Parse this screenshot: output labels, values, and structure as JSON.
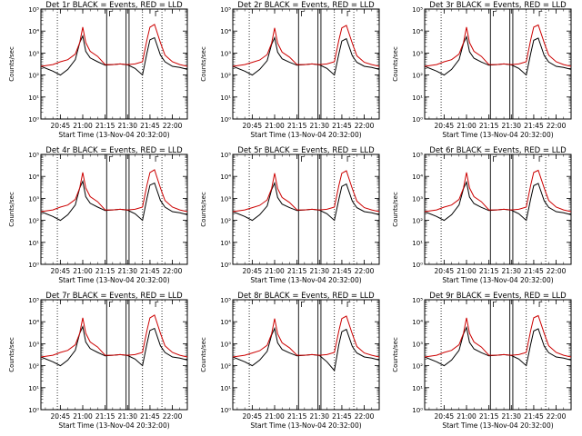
{
  "chart_data": {
    "type": "line",
    "layout": "3x3 grid of panels",
    "yscale": "log",
    "ylim": [
      1,
      100000
    ],
    "ytick_labels": [
      "10⁰",
      "10¹",
      "10²",
      "10³",
      "10⁴",
      "10⁵"
    ],
    "ylabel": "Counts/sec",
    "xlabel": "Start Time (13-Nov-04 20:32:00)",
    "xlim": [
      "20:32",
      "22:10"
    ],
    "xtick_labels": [
      "20:45",
      "21:00",
      "21:15",
      "21:30",
      "21:45",
      "22:00"
    ],
    "series_colors": {
      "Events": "#000000",
      "LLD": "#cc0000"
    },
    "marker_labels": [
      "Γ",
      "Γ"
    ],
    "vlines_solid": [
      "21:16",
      "21:29",
      "21:31"
    ],
    "vlines_dotted": [
      "20:43",
      "21:40",
      "21:53"
    ],
    "time_axis_hhmm": [
      "20:32",
      "20:40",
      "20:45",
      "20:50",
      "20:55",
      "20:58",
      "21:00",
      "21:02",
      "21:05",
      "21:10",
      "21:15",
      "21:20",
      "21:25",
      "21:30",
      "21:35",
      "21:40",
      "21:43",
      "21:45",
      "21:48",
      "21:52",
      "21:55",
      "22:00",
      "22:05",
      "22:10"
    ],
    "panels": [
      {
        "title": "Det 1r BLACK = Events, RED = LLD",
        "series": [
          {
            "name": "Events",
            "values": [
              250,
              150,
              100,
              180,
              500,
              3000,
              6000,
              1200,
              600,
              400,
              280,
              300,
              320,
              290,
              200,
              100,
              1000,
              4000,
              5000,
              800,
              400,
              250,
              220,
              180
            ]
          },
          {
            "name": "LLD",
            "values": [
              250,
              300,
              400,
              500,
              900,
              3000,
              15000,
              3000,
              1200,
              700,
              300,
              300,
              320,
              300,
              320,
              400,
              4000,
              15000,
              20000,
              3000,
              800,
              400,
              300,
              250
            ]
          }
        ]
      },
      {
        "title": "Det 2r BLACK = Events, RED = LLD",
        "series": [
          {
            "name": "Events",
            "values": [
              250,
              150,
              100,
              180,
              450,
              2500,
              5000,
              1100,
              550,
              380,
              280,
              300,
              320,
              290,
              200,
              100,
              900,
              3500,
              4500,
              750,
              380,
              250,
              220,
              180
            ]
          },
          {
            "name": "LLD",
            "values": [
              250,
              300,
              380,
              480,
              850,
              2800,
              14000,
              2800,
              1100,
              650,
              300,
              300,
              320,
              300,
              320,
              400,
              3800,
              14000,
              18000,
              2800,
              750,
              380,
              300,
              250
            ]
          }
        ]
      },
      {
        "title": "Det 3r BLACK = Events, RED = LLD",
        "series": [
          {
            "name": "Events",
            "values": [
              250,
              150,
              100,
              180,
              500,
              2800,
              5500,
              1150,
              580,
              390,
              280,
              300,
              320,
              290,
              200,
              100,
              950,
              3800,
              4800,
              780,
              390,
              250,
              220,
              180
            ]
          },
          {
            "name": "LLD",
            "values": [
              250,
              300,
              400,
              500,
              900,
              3000,
              15000,
              3000,
              1200,
              700,
              300,
              300,
              320,
              300,
              320,
              400,
              4000,
              15000,
              19000,
              3000,
              800,
              400,
              300,
              250
            ]
          }
        ]
      },
      {
        "title": "Det 4r BLACK = Events, RED = LLD",
        "series": [
          {
            "name": "Events",
            "values": [
              250,
              150,
              100,
              180,
              500,
              3000,
              6000,
              1200,
              600,
              400,
              280,
              300,
              320,
              290,
              200,
              100,
              1000,
              4000,
              5000,
              800,
              400,
              250,
              220,
              180
            ]
          },
          {
            "name": "LLD",
            "values": [
              250,
              300,
              400,
              500,
              900,
              3000,
              15000,
              3000,
              1200,
              700,
              300,
              300,
              320,
              300,
              320,
              400,
              4000,
              15000,
              20000,
              3000,
              800,
              400,
              300,
              250
            ]
          }
        ]
      },
      {
        "title": "Det 5r BLACK = Events, RED = LLD",
        "series": [
          {
            "name": "Events",
            "values": [
              250,
              150,
              100,
              180,
              450,
              2500,
              5000,
              1100,
              550,
              380,
              280,
              300,
              320,
              290,
              200,
              100,
              900,
              3500,
              4500,
              750,
              380,
              250,
              220,
              180
            ]
          },
          {
            "name": "LLD",
            "values": [
              250,
              300,
              380,
              480,
              850,
              2800,
              14000,
              2800,
              1100,
              650,
              300,
              300,
              320,
              300,
              320,
              400,
              3800,
              14000,
              18000,
              2800,
              750,
              380,
              300,
              250
            ]
          }
        ]
      },
      {
        "title": "Det 6r BLACK = Events, RED = LLD",
        "series": [
          {
            "name": "Events",
            "values": [
              250,
              150,
              100,
              180,
              500,
              2800,
              5500,
              1150,
              580,
              390,
              280,
              300,
              320,
              290,
              200,
              100,
              950,
              3800,
              4800,
              780,
              390,
              250,
              220,
              180
            ]
          },
          {
            "name": "LLD",
            "values": [
              250,
              300,
              400,
              500,
              900,
              3000,
              15000,
              3000,
              1200,
              700,
              300,
              300,
              320,
              300,
              320,
              400,
              4000,
              15000,
              19000,
              3000,
              800,
              400,
              300,
              250
            ]
          }
        ]
      },
      {
        "title": "Det 7r BLACK = Events, RED = LLD",
        "series": [
          {
            "name": "Events",
            "values": [
              250,
              150,
              100,
              180,
              500,
              3000,
              6000,
              1200,
              600,
              400,
              280,
              300,
              320,
              290,
              200,
              100,
              1000,
              4000,
              5000,
              800,
              400,
              250,
              220,
              180
            ]
          },
          {
            "name": "LLD",
            "values": [
              250,
              300,
              400,
              500,
              900,
              3000,
              15000,
              3000,
              1200,
              700,
              300,
              300,
              320,
              300,
              320,
              400,
              4000,
              15000,
              20000,
              3000,
              800,
              400,
              300,
              250
            ]
          }
        ]
      },
      {
        "title": "Det 8r BLACK = Events, RED = LLD",
        "series": [
          {
            "name": "Events",
            "values": [
              250,
              150,
              100,
              180,
              450,
              2500,
              5000,
              1100,
              550,
              380,
              280,
              300,
              320,
              290,
              150,
              60,
              900,
              3500,
              4500,
              750,
              380,
              250,
              220,
              180
            ]
          },
          {
            "name": "LLD",
            "values": [
              250,
              300,
              380,
              480,
              850,
              2800,
              14000,
              2800,
              1100,
              650,
              300,
              300,
              320,
              300,
              320,
              400,
              3800,
              14000,
              18000,
              2800,
              750,
              380,
              300,
              250
            ]
          }
        ]
      },
      {
        "title": "Det 9r BLACK = Events, RED = LLD",
        "series": [
          {
            "name": "Events",
            "values": [
              250,
              150,
              100,
              180,
              500,
              2800,
              5500,
              1150,
              580,
              390,
              280,
              300,
              320,
              290,
              200,
              100,
              950,
              3800,
              4800,
              780,
              390,
              250,
              220,
              180
            ]
          },
          {
            "name": "LLD",
            "values": [
              250,
              300,
              400,
              500,
              900,
              3000,
              15000,
              3000,
              1200,
              700,
              300,
              300,
              320,
              300,
              320,
              400,
              4000,
              15000,
              19000,
              3000,
              800,
              400,
              300,
              250
            ]
          }
        ]
      }
    ]
  }
}
